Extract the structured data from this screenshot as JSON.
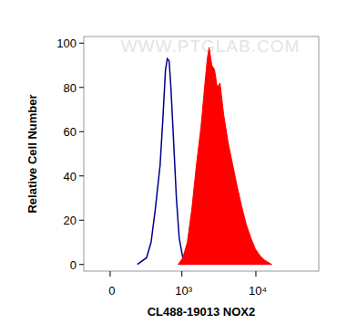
{
  "chart_data": {
    "type": "area",
    "xlabel": "CL488-19013 NOX2",
    "ylabel": "Relative Cell Number",
    "annotations": [
      "WWW.PTGLAB.COM"
    ],
    "log": "x",
    "xlim": [
      -200,
      70000
    ],
    "xticks": [
      0,
      {
        "value": 1000,
        "label": "10³"
      },
      {
        "value": 10000,
        "label": "10⁴"
      }
    ],
    "ylim": [
      -3,
      103
    ],
    "yticks": [
      0,
      20,
      40,
      60,
      80,
      100
    ],
    "grid": false,
    "series": [
      {
        "type": "line",
        "color": "#00008b",
        "x": [
          208,
          303,
          359,
          418,
          493,
          539,
          590,
          627,
          665,
          704,
          770,
          840,
          918,
          1030,
          1188
        ],
        "values": [
          0,
          3,
          10,
          25,
          45,
          65,
          88,
          93,
          92,
          80,
          55,
          30,
          12,
          3,
          0
        ]
      },
      {
        "type": "area",
        "color": "#ff0000",
        "x": [
          891,
          1030,
          1188,
          1368,
          1580,
          1820,
          2037,
          2218,
          2347,
          2552,
          2776,
          3023,
          3289,
          3676,
          4239,
          4877,
          5617,
          6464,
          7436,
          8558,
          9834,
          11330,
          13046,
          16324
        ],
        "values": [
          0,
          3,
          10,
          25,
          45,
          62,
          80,
          93,
          98,
          90,
          88,
          80,
          82,
          68,
          55,
          45,
          35,
          26,
          18,
          12,
          7,
          4,
          2,
          0
        ]
      }
    ]
  }
}
